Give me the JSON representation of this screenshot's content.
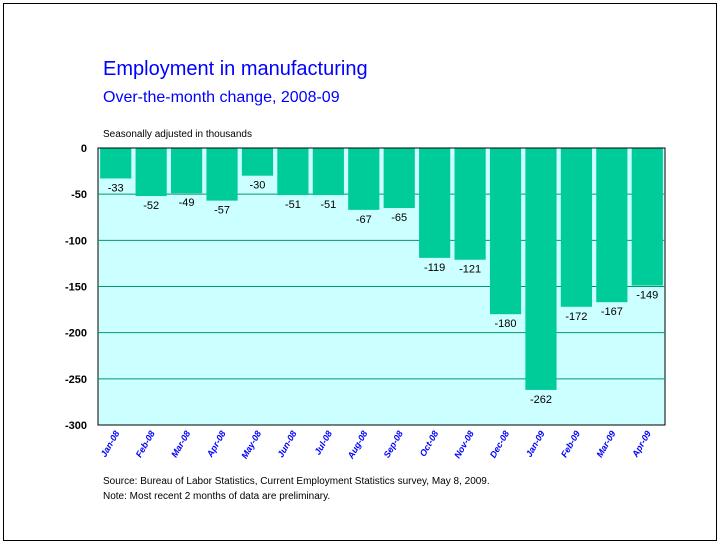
{
  "slide": {
    "title": "Employment in manufacturing",
    "subtitle": "Over-the-month change, 2008-09",
    "units": "Seasonally adjusted in thousands",
    "source": "Source:  Bureau of Labor Statistics, Current Employment Statistics survey, May 8, 2009.",
    "note": "Note:  Most recent 2 months of data are preliminary."
  },
  "colors": {
    "title": "#0000ff",
    "plot_background": "#ccffff",
    "bar": "#00cc99",
    "gridline": "#009966",
    "tick_label_x": "#0000ff",
    "tick_label_y": "#000000"
  },
  "chart_data": {
    "type": "bar",
    "title": "Employment in manufacturing",
    "subtitle": "Over-the-month change, 2008-09",
    "ylabel": "Seasonally adjusted in thousands",
    "categories": [
      "Jan-08",
      "Feb-08",
      "Mar-08",
      "Apr-08",
      "May-08",
      "Jun-08",
      "Jul-08",
      "Aug-08",
      "Sep-08",
      "Oct-08",
      "Nov-08",
      "Dec-08",
      "Jan-09",
      "Feb-09",
      "Mar-09",
      "Apr-09"
    ],
    "values": [
      -33,
      -52,
      -49,
      -57,
      -30,
      -51,
      -51,
      -67,
      -65,
      -119,
      -121,
      -180,
      -262,
      -172,
      -167,
      -149
    ],
    "data_labels": [
      "-33",
      "-52",
      "-49",
      "-57",
      "-30",
      "-51",
      "-51",
      "-67",
      "-65",
      "-119",
      "-121",
      "-180",
      "-262",
      "-172",
      "-167",
      "-149"
    ],
    "ylim": [
      -300,
      0
    ],
    "yticks": [
      0,
      -50,
      -100,
      -150,
      -200,
      -250,
      -300
    ],
    "ytick_labels": [
      "0",
      "-50",
      "-100",
      "-150",
      "-200",
      "-250",
      "-300"
    ],
    "grid": true,
    "legend": "none"
  }
}
